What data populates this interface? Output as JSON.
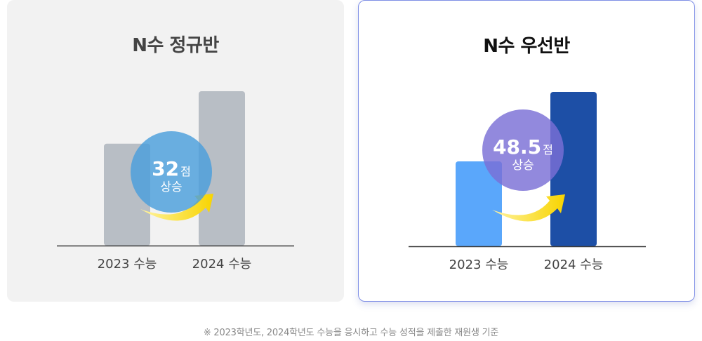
{
  "cards": [
    {
      "title": "N수 정규반",
      "bubble": {
        "value": "32",
        "unit": "점",
        "text": "상승",
        "color": "#4a9fdc"
      },
      "bar_colors": [
        "#b8bec5",
        "#b8bec5"
      ]
    },
    {
      "title": "N수 우선반",
      "bubble": {
        "value": "48.5",
        "unit": "점",
        "text": "상승",
        "color": "#7a6fd6"
      },
      "bar_colors": [
        "#5aa7fb",
        "#1d4fa6"
      ]
    }
  ],
  "chart_data": [
    {
      "type": "bar",
      "title": "N수 정규반",
      "categories": [
        "2023 수능",
        "2024 수능"
      ],
      "values": [
        66,
        100
      ],
      "ylim": [
        0,
        100
      ],
      "grid": false
    },
    {
      "type": "bar",
      "title": "N수 우선반",
      "categories": [
        "2023 수능",
        "2024 수능"
      ],
      "values": [
        55,
        100
      ],
      "ylim": [
        0,
        100
      ],
      "grid": false
    }
  ],
  "footnote": "※ 2023학년도, 2024학년도 수능을 응시하고 수능 성적을 제출한 재원생 기준"
}
